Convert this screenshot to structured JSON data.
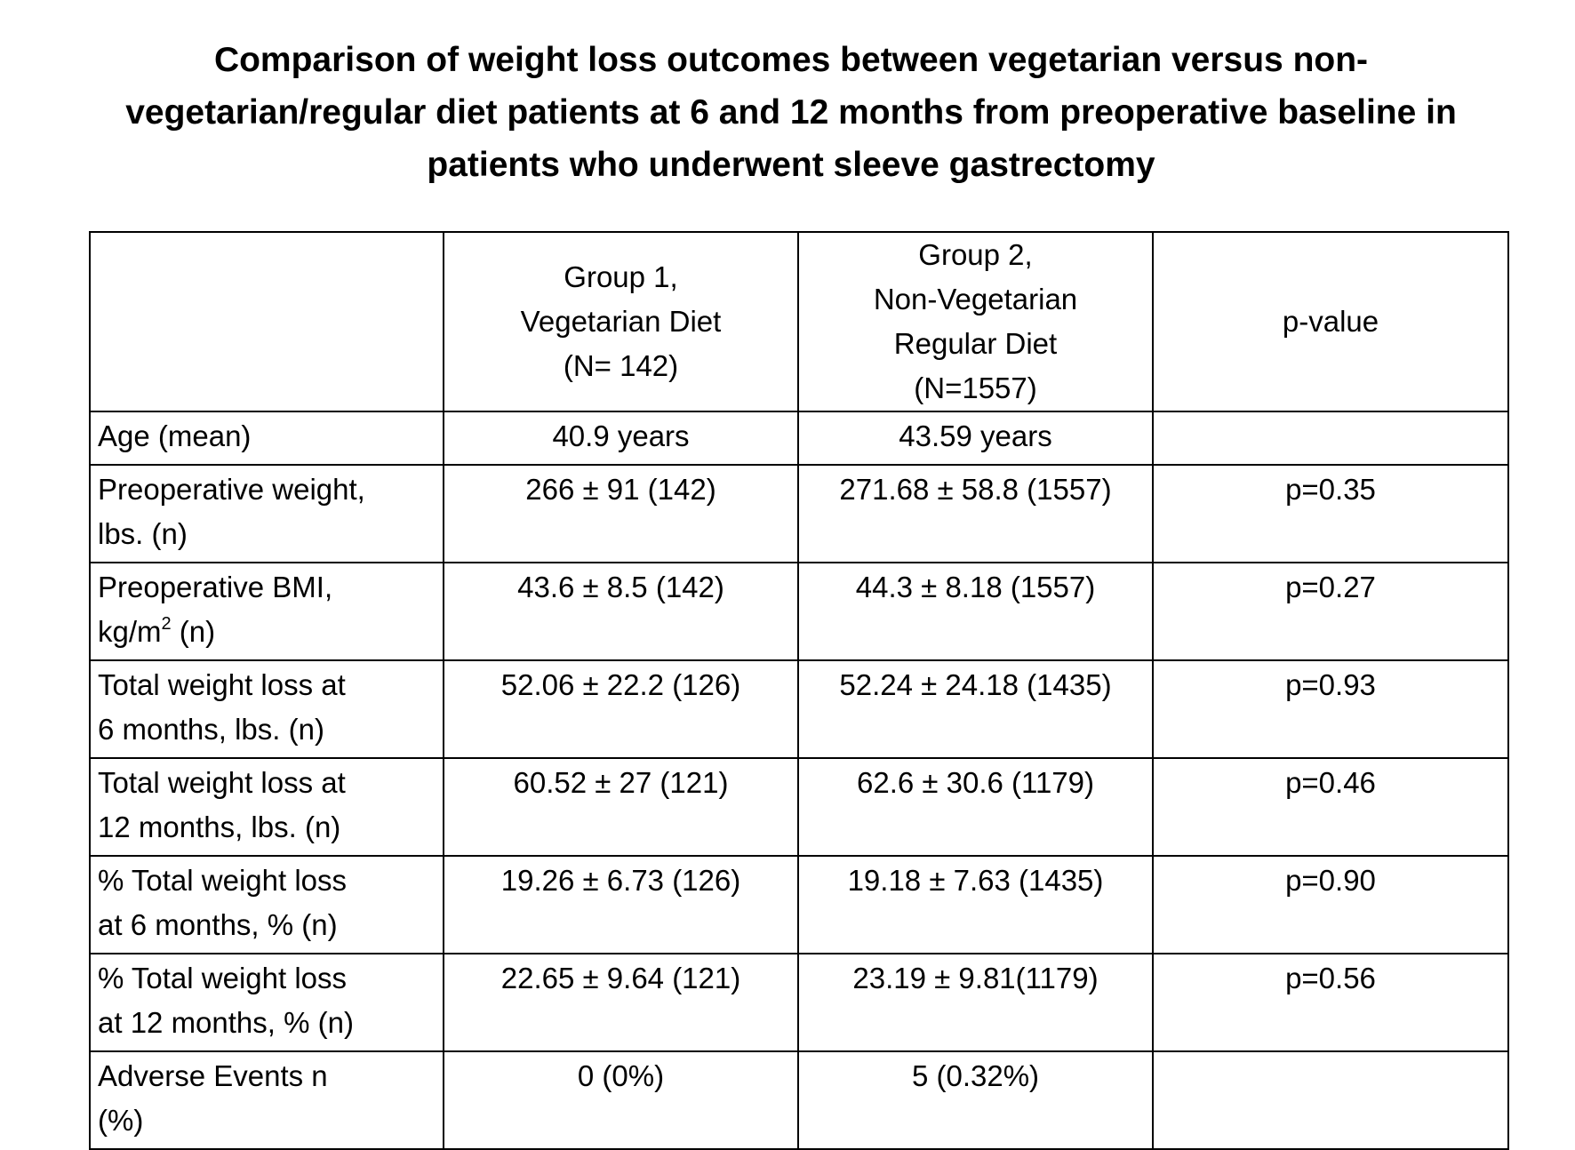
{
  "title": "Comparison of weight loss outcomes between vegetarian versus non-vegetarian/regular diet patients at 6 and 12 months from preoperative baseline in patients who underwent sleeve gastrectomy",
  "header": {
    "empty": "",
    "group1": [
      "Group 1,",
      "Vegetarian Diet",
      "(N= 142)"
    ],
    "group2": [
      "Group 2,",
      "Non-Vegetarian",
      "Regular Diet",
      "(N=1557)"
    ],
    "pvalue": "p-value"
  },
  "rows": [
    {
      "label_a": "Age (mean)",
      "label_b": "",
      "g1": "40.9 years",
      "g2": "43.59 years",
      "p": ""
    },
    {
      "label_a": "Preoperative weight,",
      "label_b": "lbs. (n)",
      "g1": "266 ± 91 (142)",
      "g2": "271.68 ± 58.8 (1557)",
      "p": "p=0.35"
    },
    {
      "label_a": "Preoperative BMI,",
      "label_b_pre": "kg/m",
      "label_b_sup": "2",
      "label_b_post": " (n)",
      "g1": "43.6 ± 8.5 (142)",
      "g2": "44.3 ± 8.18 (1557)",
      "p": "p=0.27"
    },
    {
      "label_a": "Total weight loss at",
      "label_b": "6 months, lbs. (n)",
      "g1": "52.06 ± 22.2 (126)",
      "g2": "52.24 ± 24.18 (1435)",
      "p": "p=0.93"
    },
    {
      "label_a": "Total weight loss at",
      "label_b": "12 months, lbs. (n)",
      "g1": "60.52 ± 27 (121)",
      "g2": "62.6 ± 30.6 (1179)",
      "p": "p=0.46"
    },
    {
      "label_a": "% Total weight loss",
      "label_b": "at 6 months, % (n)",
      "g1": "19.26 ± 6.73 (126)",
      "g2": "19.18 ± 7.63 (1435)",
      "p": "p=0.90"
    },
    {
      "label_a": "% Total weight loss",
      "label_b": "at 12 months, % (n)",
      "g1": "22.65 ± 9.64 (121)",
      "g2": "23.19 ± 9.81(1179)",
      "p": "p=0.56"
    },
    {
      "label_a": "Adverse Events n",
      "label_b": "(%)",
      "g1": "0 (0%)",
      "g2": "5 (0.32%)",
      "p": ""
    }
  ]
}
